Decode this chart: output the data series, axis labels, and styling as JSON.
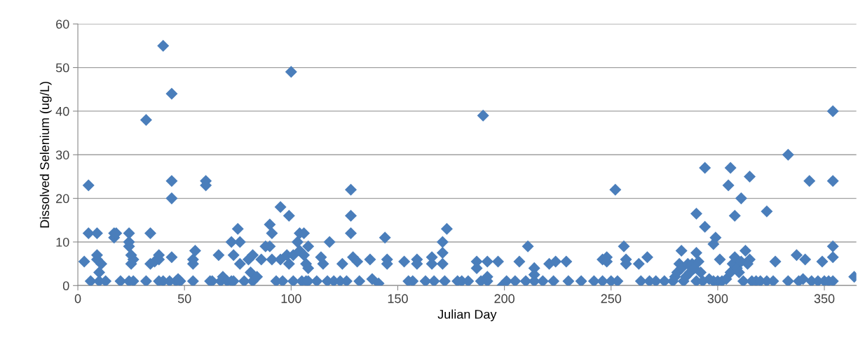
{
  "chart_data": {
    "type": "scatter",
    "xlabel": "Julian Day",
    "ylabel": "Dissolved Selenium (ug/L)",
    "xlim": [
      0,
      365
    ],
    "xticks": [
      0,
      50,
      100,
      150,
      200,
      250,
      300,
      350
    ],
    "ylim": [
      0,
      60
    ],
    "yticks": [
      0,
      10,
      20,
      30,
      40,
      50,
      60
    ],
    "grid": "y",
    "marker": "diamond",
    "series": [
      {
        "color": "#4a7ebb",
        "x": [
          5,
          5,
          3,
          6,
          9,
          9,
          9,
          11,
          10,
          10,
          13,
          17,
          17,
          18,
          20,
          24,
          24,
          24,
          25,
          26,
          25,
          24,
          26,
          32,
          32,
          34,
          34,
          36,
          38,
          38,
          38,
          40,
          40,
          44,
          44,
          44,
          44,
          43,
          46,
          47,
          48,
          54,
          54,
          55,
          54,
          60,
          60,
          62,
          63,
          66,
          67,
          68,
          70,
          72,
          73,
          73,
          72,
          75,
          76,
          76,
          78,
          80,
          81,
          82,
          82,
          84,
          86,
          88,
          90,
          90,
          91,
          91,
          93,
          95,
          95,
          96,
          98,
          99,
          99,
          100,
          101,
          101,
          103,
          104,
          104,
          105,
          106,
          106,
          107,
          107,
          108,
          108,
          108,
          112,
          114,
          115,
          117,
          118,
          120,
          123,
          124,
          126,
          128,
          128,
          128,
          129,
          131,
          132,
          137,
          138,
          141,
          144,
          145,
          145,
          153,
          159,
          159,
          166,
          166,
          171,
          171,
          171,
          173,
          180,
          187,
          187,
          192,
          192,
          192,
          190,
          197,
          199,
          207,
          211,
          214,
          214,
          221,
          224,
          229,
          155,
          157,
          163,
          167,
          172,
          178,
          183,
          189,
          201,
          205,
          210,
          214,
          218,
          223,
          230,
          236,
          242,
          246,
          246,
          248,
          248,
          252,
          256,
          257,
          257,
          263,
          267,
          283,
          290,
          290,
          294,
          294,
          298,
          299,
          301,
          305,
          306,
          308,
          311,
          313,
          315,
          315,
          323,
          327,
          333,
          337,
          341,
          343,
          349,
          354,
          354,
          354,
          354,
          354,
          364,
          279,
          280,
          281,
          282,
          283,
          284,
          285,
          286,
          287,
          288,
          289,
          290,
          291,
          292,
          293,
          296,
          298,
          300,
          302,
          304,
          306,
          307,
          308,
          309,
          310,
          311,
          312,
          314,
          316,
          318,
          320,
          323,
          326,
          333,
          338,
          340,
          344,
          347,
          350,
          352,
          264,
          268,
          271,
          275,
          250,
          253
        ],
        "values": [
          23,
          12,
          5.5,
          1,
          12,
          6,
          7,
          5,
          3,
          1,
          1,
          11,
          12,
          12,
          1,
          12,
          9,
          10,
          7,
          6,
          5,
          1,
          1,
          38,
          1,
          12,
          5,
          5.5,
          7,
          6,
          1,
          55,
          1,
          44,
          24,
          20,
          6.5,
          1,
          1,
          1.5,
          1,
          5,
          6,
          8,
          1,
          24,
          23,
          1,
          1,
          7,
          1,
          2,
          1,
          1,
          1,
          7,
          10,
          13,
          10,
          5,
          1,
          6,
          3,
          7,
          1,
          2,
          6,
          9,
          9,
          14,
          12,
          6,
          1,
          18,
          6,
          1,
          7,
          5,
          16,
          49,
          7,
          1,
          10,
          12,
          8,
          1,
          12,
          7,
          5,
          1,
          9,
          4,
          1,
          1,
          6.5,
          5,
          1,
          10,
          1,
          1,
          5,
          1,
          22,
          16,
          12,
          6.5,
          5.5,
          1,
          6,
          1.5,
          0.5,
          11,
          6,
          5,
          5.5,
          6,
          5,
          6.5,
          5,
          7.5,
          5,
          10,
          13,
          1,
          5.5,
          4,
          5.5,
          2,
          1,
          39,
          5.5,
          0,
          5.5,
          9,
          4,
          2.5,
          5,
          5.5,
          5.5,
          1,
          1,
          1,
          1,
          1,
          1,
          1,
          1,
          1,
          1,
          1,
          1,
          1,
          1,
          1,
          1,
          1,
          1,
          6,
          6.5,
          5.5,
          22,
          9,
          6,
          5,
          5,
          6.5,
          8,
          7.5,
          16.5,
          27,
          13.5,
          9.5,
          11,
          6,
          23,
          27,
          16,
          20,
          8,
          6,
          25,
          17,
          5.5,
          30,
          7,
          6,
          24,
          5.5,
          40,
          24,
          9,
          6.5,
          1,
          2,
          1,
          2,
          3,
          5,
          4,
          1,
          2,
          5,
          3,
          5,
          4,
          1,
          5.5,
          3,
          1,
          1.5,
          1,
          1,
          1,
          1.5,
          3,
          5,
          6.5,
          4,
          3,
          5.5,
          1,
          5,
          1,
          1,
          1,
          1,
          1,
          1,
          1,
          1.5,
          1,
          1,
          1,
          1,
          1,
          1,
          1,
          1,
          1,
          1
        ]
      }
    ]
  }
}
